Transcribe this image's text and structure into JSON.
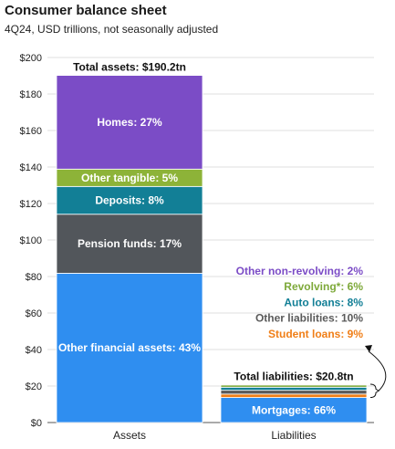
{
  "title": "Consumer balance sheet",
  "subtitle": "4Q24, USD trillions, not seasonally adjusted",
  "colors": {
    "homes": "#7b4cc6",
    "other_tangible": "#8db338",
    "deposits": "#127f96",
    "pension_funds": "#52565b",
    "other_financial_assets": "#2f8ef0",
    "mortgages": "#2f8ef0",
    "student_loans": "#f07f18",
    "other_liabilities": "#5a5a5a",
    "auto_loans": "#127f96",
    "revolving": "#7ea93a",
    "other_non_revolving": "#7b4cc6"
  },
  "chart_data": {
    "type": "bar",
    "stacked": true,
    "categories": [
      "Assets",
      "Liabilities"
    ],
    "ylim": [
      0,
      200
    ],
    "yticks": [
      "$0",
      "$20",
      "$40",
      "$60",
      "$80",
      "$100",
      "$120",
      "$140",
      "$160",
      "$180",
      "$200"
    ],
    "ytick_values": [
      0,
      20,
      40,
      60,
      80,
      100,
      120,
      140,
      160,
      180,
      200
    ],
    "grid": true,
    "totals": [
      {
        "category": "Assets",
        "label": "Total assets: $190.2tn",
        "value": 190.2
      },
      {
        "category": "Liabilities",
        "label": "Total liabilities: $20.8tn",
        "value": 20.8
      }
    ],
    "assets": [
      {
        "key": "other_financial_assets",
        "label": "Other financial assets: 43%",
        "pct": 43
      },
      {
        "key": "pension_funds",
        "label": "Pension funds: 17%",
        "pct": 17
      },
      {
        "key": "deposits",
        "label": "Deposits: 8%",
        "pct": 8
      },
      {
        "key": "other_tangible",
        "label": "Other tangible: 5%",
        "pct": 5
      },
      {
        "key": "homes",
        "label": "Homes: 27%",
        "pct": 27
      }
    ],
    "liabilities": [
      {
        "key": "mortgages",
        "label": "Mortgages: 66%",
        "pct": 66
      },
      {
        "key": "student_loans",
        "label": "Student loans: 9%",
        "pct": 9
      },
      {
        "key": "other_liabilities",
        "label": "Other liabilities: 10%",
        "pct": 10
      },
      {
        "key": "auto_loans",
        "label": "Auto loans: 8%",
        "pct": 8
      },
      {
        "key": "revolving",
        "label": "Revolving*: 6%",
        "pct": 6
      },
      {
        "key": "other_non_revolving",
        "label": "Other non-revolving: 2%",
        "pct": 2
      }
    ]
  }
}
